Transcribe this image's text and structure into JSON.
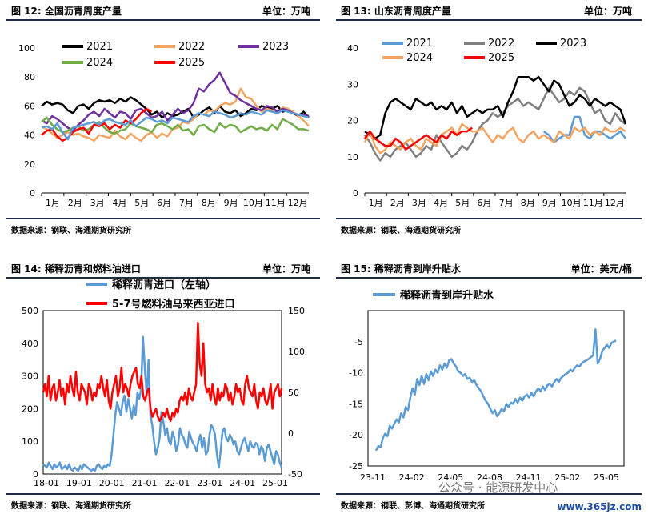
{
  "panels": {
    "p12": {
      "title": "图 12:    全国沥青周度产量",
      "unit": "单位：万吨",
      "source": "数据来源：钢联、海通期货研究所"
    },
    "p13": {
      "title": "图 13:    山东沥青周度产量",
      "unit": "单位：万吨",
      "source": "数据来源：钢联、海通期货研究所"
    },
    "p14": {
      "title": "图 14:    稀释沥青和燃料油进口",
      "unit": "单位：万吨",
      "source": "数据来源：钢联、海通期货研究所"
    },
    "p15": {
      "title": "图 15:    稀释沥青到岸升贴水",
      "unit": "单位：美元/桶",
      "source": "数据来源：钢联、彭博、海通期货研究所"
    }
  },
  "watermark": {
    "wechat": "公众号 · 能源研发中心",
    "site": "www.365jz.com"
  },
  "chart_data": [
    {
      "id": "c12",
      "type": "line",
      "title": "",
      "xlabel": "",
      "ylabel": "",
      "ylim": [
        0,
        100
      ],
      "yticks": [
        0,
        20,
        40,
        60,
        80,
        100
      ],
      "xticks": [
        "1月",
        "2月",
        "3月",
        "4月",
        "5月",
        "6月",
        "7月",
        "8月",
        "9月",
        "10月",
        "11月",
        "12月"
      ],
      "weeks": 52,
      "legend_position": "top",
      "series": [
        {
          "name": "2021",
          "color": "#000000",
          "values": [
            60,
            63,
            61,
            62,
            61,
            57,
            55,
            60,
            61,
            58,
            62,
            64,
            63,
            64,
            62,
            65,
            63,
            66,
            64,
            61,
            58,
            54,
            56,
            52,
            55,
            53,
            54,
            56,
            58,
            52,
            54,
            57,
            59,
            55,
            60,
            56,
            55,
            57,
            53,
            55,
            58,
            57,
            60,
            59,
            58,
            60,
            56,
            57,
            55,
            53,
            56,
            52
          ]
        },
        {
          "name": "2022",
          "color": "#f4a460",
          "values": [
            46,
            44,
            41,
            38,
            40,
            42,
            40,
            41,
            39,
            38,
            36,
            40,
            39,
            38,
            43,
            39,
            37,
            41,
            38,
            36,
            40,
            42,
            38,
            41,
            39,
            44,
            45,
            49,
            48,
            51,
            55,
            54,
            57,
            56,
            60,
            62,
            61,
            63,
            72,
            66,
            65,
            60,
            56,
            58,
            57,
            55,
            59,
            58,
            56,
            53,
            50,
            46
          ]
        },
        {
          "name": "2023",
          "color": "#7030a0",
          "values": [
            50,
            48,
            53,
            51,
            48,
            45,
            43,
            47,
            50,
            54,
            56,
            53,
            58,
            55,
            52,
            56,
            55,
            51,
            57,
            58,
            55,
            52,
            53,
            56,
            50,
            54,
            58,
            55,
            57,
            62,
            72,
            70,
            75,
            78,
            83,
            76,
            69,
            67,
            64,
            62,
            60,
            58,
            57,
            60,
            59,
            56,
            58,
            57,
            55,
            54,
            54,
            53
          ]
        },
        {
          "name": "2024",
          "color": "#70ad47",
          "values": [
            49,
            52,
            47,
            44,
            42,
            43,
            45,
            46,
            43,
            44,
            47,
            49,
            45,
            42,
            41,
            43,
            44,
            48,
            46,
            45,
            44,
            42,
            47,
            48,
            46,
            44,
            47,
            43,
            44,
            40,
            46,
            47,
            44,
            42,
            48,
            45,
            47,
            46,
            42,
            44,
            46,
            44,
            45,
            43,
            47,
            44,
            51,
            49,
            47,
            44,
            44,
            43
          ]
        },
        {
          "name": "2025",
          "color": "#ff0000",
          "values": [
            40,
            43,
            44,
            39,
            36,
            38,
            42,
            44,
            45,
            41,
            47,
            46,
            48,
            44,
            47,
            45,
            50,
            48,
            51,
            55,
            58,
            56,
            null,
            null,
            null,
            null,
            null,
            null,
            null,
            null,
            null,
            null,
            null,
            null,
            null,
            null,
            null,
            null,
            null,
            null,
            null,
            null,
            null,
            null,
            null,
            null,
            null,
            null,
            null,
            null,
            null,
            null
          ]
        },
        {
          "name": "",
          "color": "#5b9bd5",
          "values": [
            45,
            46,
            44,
            48,
            42,
            37,
            45,
            46,
            47,
            48,
            49,
            47,
            50,
            51,
            49,
            48,
            47,
            50,
            46,
            49,
            52,
            51,
            49,
            50,
            48,
            52,
            51,
            50,
            49,
            53,
            55,
            54,
            53,
            56,
            55,
            54,
            52,
            53,
            55,
            54,
            56,
            55,
            54,
            57,
            56,
            55,
            57,
            56,
            55,
            54,
            53,
            52
          ]
        }
      ]
    },
    {
      "id": "c13",
      "type": "line",
      "title": "",
      "xlabel": "",
      "ylabel": "",
      "ylim": [
        0,
        40
      ],
      "yticks": [
        0,
        10,
        20,
        30,
        40
      ],
      "xticks": [
        "1月",
        "2月",
        "3月",
        "4月",
        "5月",
        "6月",
        "7月",
        "8月",
        "9月",
        "10月",
        "11月",
        "12月"
      ],
      "weeks": 52,
      "legend_position": "top",
      "series": [
        {
          "name": "2021",
          "color": "#5b9bd5",
          "values": [
            null,
            null,
            null,
            null,
            null,
            null,
            null,
            null,
            null,
            null,
            null,
            null,
            null,
            null,
            null,
            null,
            null,
            null,
            null,
            null,
            null,
            null,
            null,
            null,
            null,
            null,
            null,
            null,
            null,
            null,
            null,
            null,
            null,
            null,
            null,
            17,
            16,
            14,
            15,
            16,
            16,
            21,
            21,
            16,
            15,
            17,
            17,
            16,
            15,
            16,
            17,
            15
          ]
        },
        {
          "name": "2022",
          "color": "#808080",
          "values": [
            16,
            14,
            11,
            9,
            11,
            10,
            12,
            13,
            14,
            12,
            10,
            11,
            13,
            12,
            16,
            14,
            12,
            10,
            11,
            13,
            12,
            14,
            17,
            19,
            20,
            22,
            21,
            22,
            24,
            25,
            26,
            24,
            25,
            24,
            23,
            26,
            29,
            27,
            25,
            26,
            28,
            27,
            29,
            28,
            25,
            22,
            23,
            20,
            19,
            22,
            20,
            19
          ]
        },
        {
          "name": "2023",
          "color": "#000000",
          "values": [
            17,
            16,
            15,
            16,
            22,
            25,
            26,
            25,
            24,
            23,
            26,
            25,
            24,
            25,
            23,
            24,
            23,
            25,
            22,
            24,
            21,
            22,
            23,
            22,
            23,
            23,
            24,
            21,
            25,
            28,
            32,
            32,
            32,
            31,
            32,
            30,
            28,
            31,
            30,
            27,
            24,
            25,
            27,
            26,
            24,
            26,
            25,
            24,
            25,
            24,
            23,
            19
          ]
        },
        {
          "name": "2024",
          "color": "#f4a460",
          "values": [
            14,
            17,
            13,
            11,
            12,
            14,
            13,
            12,
            14,
            15,
            13,
            12,
            15,
            14,
            13,
            16,
            17,
            18,
            16,
            19,
            18,
            17,
            17,
            18,
            16,
            14,
            16,
            15,
            17,
            18,
            15,
            14,
            16,
            17,
            15,
            16,
            15,
            14,
            17,
            16,
            15,
            18,
            17,
            18,
            16,
            17,
            16,
            18,
            17,
            17,
            18,
            17
          ]
        },
        {
          "name": "2025",
          "color": "#ff0000",
          "values": [
            15,
            17,
            15,
            14,
            13,
            13,
            15,
            14,
            12,
            13,
            14,
            15,
            16,
            15,
            14,
            16,
            15,
            17,
            16,
            17,
            17,
            18,
            null,
            null,
            null,
            null,
            null,
            null,
            null,
            null,
            null,
            null,
            null,
            null,
            null,
            null,
            null,
            null,
            null,
            null,
            null,
            null,
            null,
            null,
            null,
            null,
            null,
            null,
            null,
            null,
            null,
            null
          ]
        }
      ]
    },
    {
      "id": "c14",
      "type": "line",
      "title": "",
      "xlabel": "",
      "ylabel": "",
      "ylim": [
        0,
        500
      ],
      "yticks": [
        0,
        100,
        200,
        300,
        400,
        500
      ],
      "ylim_right": [
        -50,
        150
      ],
      "yticks_right": [
        -50,
        0,
        50,
        100,
        150
      ],
      "xticks": [
        "18-01",
        "19-01",
        "20-01",
        "21-01",
        "22-01",
        "23-01",
        "24-01",
        "25-01"
      ],
      "legend_position": "top",
      "series": [
        {
          "name": "稀释沥青进口（左轴）",
          "color": "#5b9bd5",
          "axis": "left",
          "values": [
            30,
            25,
            20,
            35,
            25,
            15,
            30,
            20,
            25,
            35,
            15,
            20,
            25,
            15,
            30,
            15,
            10,
            20,
            15,
            10,
            25,
            15,
            30,
            25,
            20,
            15,
            10,
            15,
            10,
            25,
            30,
            20,
            15,
            25,
            20,
            30,
            25,
            60,
            120,
            180,
            220,
            200,
            180,
            220,
            240,
            190,
            230,
            200,
            170,
            210,
            180,
            250,
            230,
            260,
            420,
            320,
            240,
            350,
            180,
            150,
            100,
            60,
            80,
            110,
            190,
            160,
            120,
            140,
            100,
            90,
            130,
            110,
            70,
            90,
            140,
            120,
            110,
            90,
            80,
            130,
            110,
            95,
            85,
            70,
            100,
            120,
            80,
            110,
            60,
            70,
            120,
            150,
            140,
            120,
            60,
            20,
            70,
            130,
            140,
            110,
            100,
            120,
            110,
            90,
            100,
            70,
            60,
            80,
            100,
            110,
            90,
            70,
            100,
            85,
            80,
            95,
            90,
            60,
            85,
            75,
            40,
            80,
            90,
            70,
            50,
            30,
            70,
            60,
            35,
            20
          ]
        },
        {
          "name": "5-7号燃料油马来西亚进口",
          "color": "#ff0000",
          "axis": "right",
          "values": [
            50,
            60,
            45,
            70,
            40,
            55,
            60,
            40,
            50,
            65,
            45,
            55,
            35,
            60,
            50,
            70,
            55,
            45,
            75,
            50,
            40,
            60,
            55,
            50,
            35,
            60,
            55,
            40,
            50,
            45,
            60,
            55,
            70,
            55,
            45,
            65,
            40,
            30,
            50,
            60,
            70,
            45,
            55,
            80,
            50,
            60,
            55,
            45,
            60,
            70,
            75,
            80,
            60,
            55,
            70,
            45,
            40,
            50,
            55,
            30,
            20,
            25,
            30,
            20,
            15,
            20,
            25,
            20,
            30,
            20,
            15,
            25,
            20,
            30,
            25,
            40,
            45,
            40,
            50,
            35,
            55,
            45,
            40,
            50,
            60,
            135,
            85,
            70,
            110,
            60,
            50,
            55,
            40,
            60,
            45,
            35,
            55,
            40,
            50,
            45,
            60,
            55,
            40,
            50,
            35,
            45,
            60,
            50,
            55,
            40,
            35,
            60,
            70,
            55,
            50,
            45,
            60,
            40,
            30,
            50,
            45,
            55,
            40,
            35,
            45,
            60,
            30,
            50,
            55,
            60,
            45,
            55
          ]
        }
      ]
    },
    {
      "id": "c15",
      "type": "line",
      "title": "",
      "xlabel": "",
      "ylabel": "",
      "ylim": [
        -25,
        0
      ],
      "yticks": [
        -25,
        -20,
        -15,
        -10,
        -5
      ],
      "xticks": [
        "23-11",
        "24-02",
        "24-05",
        "24-08",
        "24-11",
        "25-02",
        "25-05"
      ],
      "legend_position": "top",
      "series": [
        {
          "name": "稀释沥青到岸升贴水",
          "color": "#5b9bd5",
          "values": [
            -22.5,
            -21.8,
            -22,
            -20.5,
            -19.8,
            -20.2,
            -18.5,
            -19,
            -18.2,
            -17.5,
            -18,
            -16.5,
            -17.2,
            -15.5,
            -16,
            -14,
            -12.5,
            -13.5,
            -11,
            -12,
            -10.5,
            -11.8,
            -10.2,
            -11.2,
            -9.8,
            -10.5,
            -9.5,
            -10,
            -8.8,
            -9.5,
            -8.5,
            -9.2,
            -8,
            -7.8,
            -8.5,
            -9,
            -9.8,
            -10,
            -10.5,
            -10.2,
            -11,
            -10.8,
            -11.5,
            -11.2,
            -12,
            -12.5,
            -13,
            -13.8,
            -14.5,
            -15,
            -15.8,
            -16.5,
            -16,
            -17,
            -16.5,
            -15.8,
            -16.2,
            -15,
            -15.5,
            -14.8,
            -15,
            -14.2,
            -14.8,
            -14,
            -14.5,
            -13.8,
            -13.5,
            -14,
            -13.2,
            -13.8,
            -13,
            -12.5,
            -13,
            -12.2,
            -12.8,
            -12,
            -11.8,
            -12.2,
            -11.5,
            -11,
            -11.5,
            -10.8,
            -10.5,
            -10.2,
            -10,
            -9.5,
            -9.8,
            -9.2,
            -8.8,
            -9,
            -8.5,
            -8.2,
            -8,
            -7.8,
            -7.5,
            -7.2,
            -3,
            -8.5,
            -7.8,
            -6.5,
            -6,
            -5.5,
            -6,
            -5.2,
            -5,
            -4.8
          ]
        }
      ]
    }
  ]
}
